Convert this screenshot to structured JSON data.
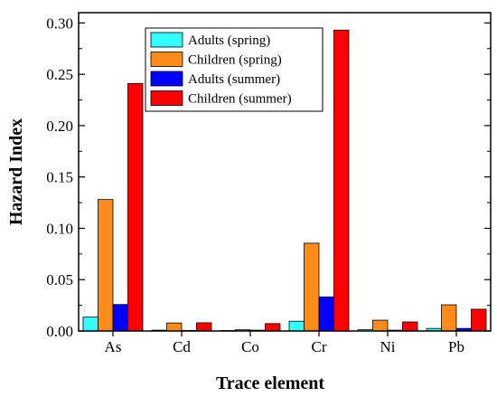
{
  "chart_data": {
    "type": "bar",
    "xlabel": "Trace element",
    "ylabel": "Hazard Index",
    "categories": [
      "As",
      "Cd",
      "Co",
      "Cr",
      "Ni",
      "Pb"
    ],
    "ylim": [
      0,
      0.31
    ],
    "yticks": [
      "0.00",
      "0.05",
      "0.10",
      "0.15",
      "0.20",
      "0.25",
      "0.30"
    ],
    "grid": false,
    "legend_position": "top-center",
    "series": [
      {
        "name": "Adults (spring)",
        "color": "#33ffff",
        "values": [
          0.0135,
          0.0008,
          0.0005,
          0.0095,
          0.0012,
          0.0025
        ]
      },
      {
        "name": "Children (spring)",
        "color": "#ff8c1a",
        "values": [
          0.128,
          0.0078,
          0.0012,
          0.0855,
          0.0105,
          0.0255
        ]
      },
      {
        "name": "Adults (summer)",
        "color": "#0000ff",
        "values": [
          0.0258,
          0.0006,
          0.0008,
          0.0332,
          0.0008,
          0.0025
        ]
      },
      {
        "name": "Children (summer)",
        "color": "#ff0000",
        "values": [
          0.241,
          0.008,
          0.0072,
          0.293,
          0.0088,
          0.0212
        ]
      }
    ]
  }
}
